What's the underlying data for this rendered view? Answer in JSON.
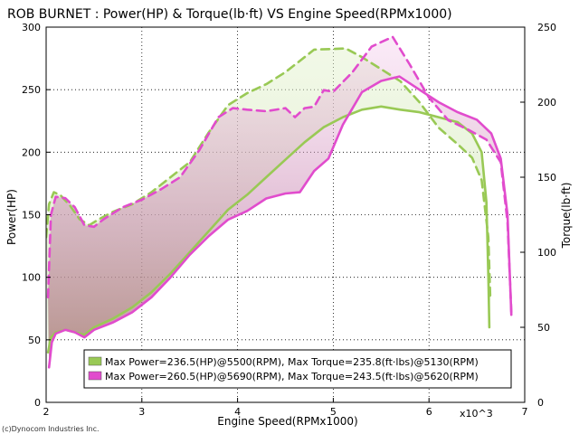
{
  "chart_data": {
    "type": "line",
    "title": "ROB BURNET  : Power(HP) & Torque(lb·ft) VS Engine Speed(RPMx1000)",
    "xlabel": "Engine Speed(RPMx1000)",
    "x_multiplier_label": "x10^3",
    "ylabel_left": "Power(HP)",
    "ylabel_right": "Torque(lb·ft)",
    "xlim": [
      2,
      7
    ],
    "ylim_left": [
      0,
      300
    ],
    "ylim_right": [
      0,
      250
    ],
    "x_ticks": [
      "2",
      "3",
      "4",
      "5",
      "6",
      "7"
    ],
    "y_ticks_left": [
      "0",
      "50",
      "100",
      "150",
      "200",
      "250",
      "300"
    ],
    "y_ticks_right": [
      "0",
      "50",
      "100",
      "150",
      "200",
      "250"
    ],
    "credit": "(c)Dynocom Industries Inc.",
    "series": [
      {
        "name": "Power run 1",
        "axis": "left",
        "color": "#99c955",
        "dash": false,
        "points": [
          [
            2.02,
            40
          ],
          [
            2.05,
            52
          ],
          [
            2.1,
            56
          ],
          [
            2.2,
            58
          ],
          [
            2.3,
            56
          ],
          [
            2.4,
            54
          ],
          [
            2.5,
            60
          ],
          [
            2.7,
            67
          ],
          [
            2.9,
            76
          ],
          [
            3.1,
            88
          ],
          [
            3.3,
            103
          ],
          [
            3.5,
            120
          ],
          [
            3.7,
            137
          ],
          [
            3.9,
            154
          ],
          [
            4.1,
            166
          ],
          [
            4.3,
            180
          ],
          [
            4.5,
            194
          ],
          [
            4.7,
            208
          ],
          [
            4.9,
            220
          ],
          [
            5.1,
            228
          ],
          [
            5.3,
            234
          ],
          [
            5.5,
            236.5
          ],
          [
            5.7,
            234
          ],
          [
            5.9,
            232
          ],
          [
            6.1,
            228
          ],
          [
            6.3,
            224
          ],
          [
            6.45,
            215
          ],
          [
            6.55,
            200
          ],
          [
            6.6,
            160
          ],
          [
            6.62,
            100
          ],
          [
            6.63,
            60
          ]
        ]
      },
      {
        "name": "Torque run 1",
        "axis": "right",
        "color": "#99c955",
        "dash": true,
        "points": [
          [
            2.0,
            110
          ],
          [
            2.03,
            132
          ],
          [
            2.08,
            140
          ],
          [
            2.15,
            138
          ],
          [
            2.25,
            131
          ],
          [
            2.35,
            122
          ],
          [
            2.45,
            118
          ],
          [
            2.55,
            122
          ],
          [
            2.7,
            127
          ],
          [
            2.9,
            132
          ],
          [
            3.1,
            140
          ],
          [
            3.3,
            150
          ],
          [
            3.5,
            160
          ],
          [
            3.7,
            180
          ],
          [
            3.9,
            198
          ],
          [
            4.1,
            206
          ],
          [
            4.3,
            212
          ],
          [
            4.5,
            220
          ],
          [
            4.7,
            230
          ],
          [
            4.8,
            235
          ],
          [
            5.0,
            235.5
          ],
          [
            5.13,
            235.8
          ],
          [
            5.3,
            230
          ],
          [
            5.5,
            222
          ],
          [
            5.7,
            214
          ],
          [
            5.9,
            200
          ],
          [
            6.1,
            183
          ],
          [
            6.3,
            172
          ],
          [
            6.45,
            163
          ],
          [
            6.55,
            148
          ],
          [
            6.62,
            110
          ],
          [
            6.64,
            70
          ]
        ]
      },
      {
        "name": "Power run 2",
        "axis": "left",
        "color": "#e14ccd",
        "dash": false,
        "points": [
          [
            2.03,
            28
          ],
          [
            2.06,
            48
          ],
          [
            2.1,
            55
          ],
          [
            2.2,
            58
          ],
          [
            2.3,
            56
          ],
          [
            2.4,
            52
          ],
          [
            2.5,
            58
          ],
          [
            2.7,
            64
          ],
          [
            2.9,
            72
          ],
          [
            3.1,
            84
          ],
          [
            3.3,
            100
          ],
          [
            3.5,
            118
          ],
          [
            3.7,
            133
          ],
          [
            3.9,
            146
          ],
          [
            4.1,
            153
          ],
          [
            4.3,
            163
          ],
          [
            4.5,
            167
          ],
          [
            4.65,
            168
          ],
          [
            4.8,
            185
          ],
          [
            4.95,
            195
          ],
          [
            5.1,
            222
          ],
          [
            5.3,
            248
          ],
          [
            5.5,
            257
          ],
          [
            5.69,
            260.5
          ],
          [
            5.9,
            250
          ],
          [
            6.1,
            240
          ],
          [
            6.3,
            232
          ],
          [
            6.5,
            226
          ],
          [
            6.65,
            215
          ],
          [
            6.75,
            195
          ],
          [
            6.82,
            150
          ],
          [
            6.86,
            70
          ]
        ]
      },
      {
        "name": "Torque run 2",
        "axis": "right",
        "color": "#e14ccd",
        "dash": true,
        "points": [
          [
            2.02,
            70
          ],
          [
            2.05,
            125
          ],
          [
            2.1,
            137
          ],
          [
            2.2,
            136
          ],
          [
            2.3,
            130
          ],
          [
            2.4,
            118
          ],
          [
            2.5,
            117
          ],
          [
            2.6,
            122
          ],
          [
            2.8,
            130
          ],
          [
            3.0,
            135
          ],
          [
            3.2,
            142
          ],
          [
            3.4,
            150
          ],
          [
            3.6,
            168
          ],
          [
            3.8,
            190
          ],
          [
            3.95,
            196
          ],
          [
            4.1,
            195
          ],
          [
            4.3,
            194
          ],
          [
            4.5,
            196
          ],
          [
            4.6,
            190
          ],
          [
            4.7,
            196
          ],
          [
            4.8,
            197
          ],
          [
            4.9,
            208
          ],
          [
            5.0,
            207
          ],
          [
            5.2,
            220
          ],
          [
            5.4,
            237
          ],
          [
            5.5,
            240
          ],
          [
            5.62,
            243.5
          ],
          [
            5.8,
            225
          ],
          [
            6.0,
            203
          ],
          [
            6.2,
            188
          ],
          [
            6.4,
            182
          ],
          [
            6.6,
            175
          ],
          [
            6.75,
            160
          ],
          [
            6.82,
            120
          ],
          [
            6.86,
            60
          ]
        ]
      }
    ],
    "legend": {
      "position": "bottom-center",
      "entries": [
        {
          "label": "Max Power=236.5(HP)@5500(RPM), Max Torque=235.8(ft·lbs)@5130(RPM)",
          "color": "#99c955"
        },
        {
          "label": "Max Power=260.5(HP)@5690(RPM), Max Torque=243.5(ft·lbs)@5620(RPM)",
          "color": "#e14ccd"
        }
      ]
    }
  }
}
